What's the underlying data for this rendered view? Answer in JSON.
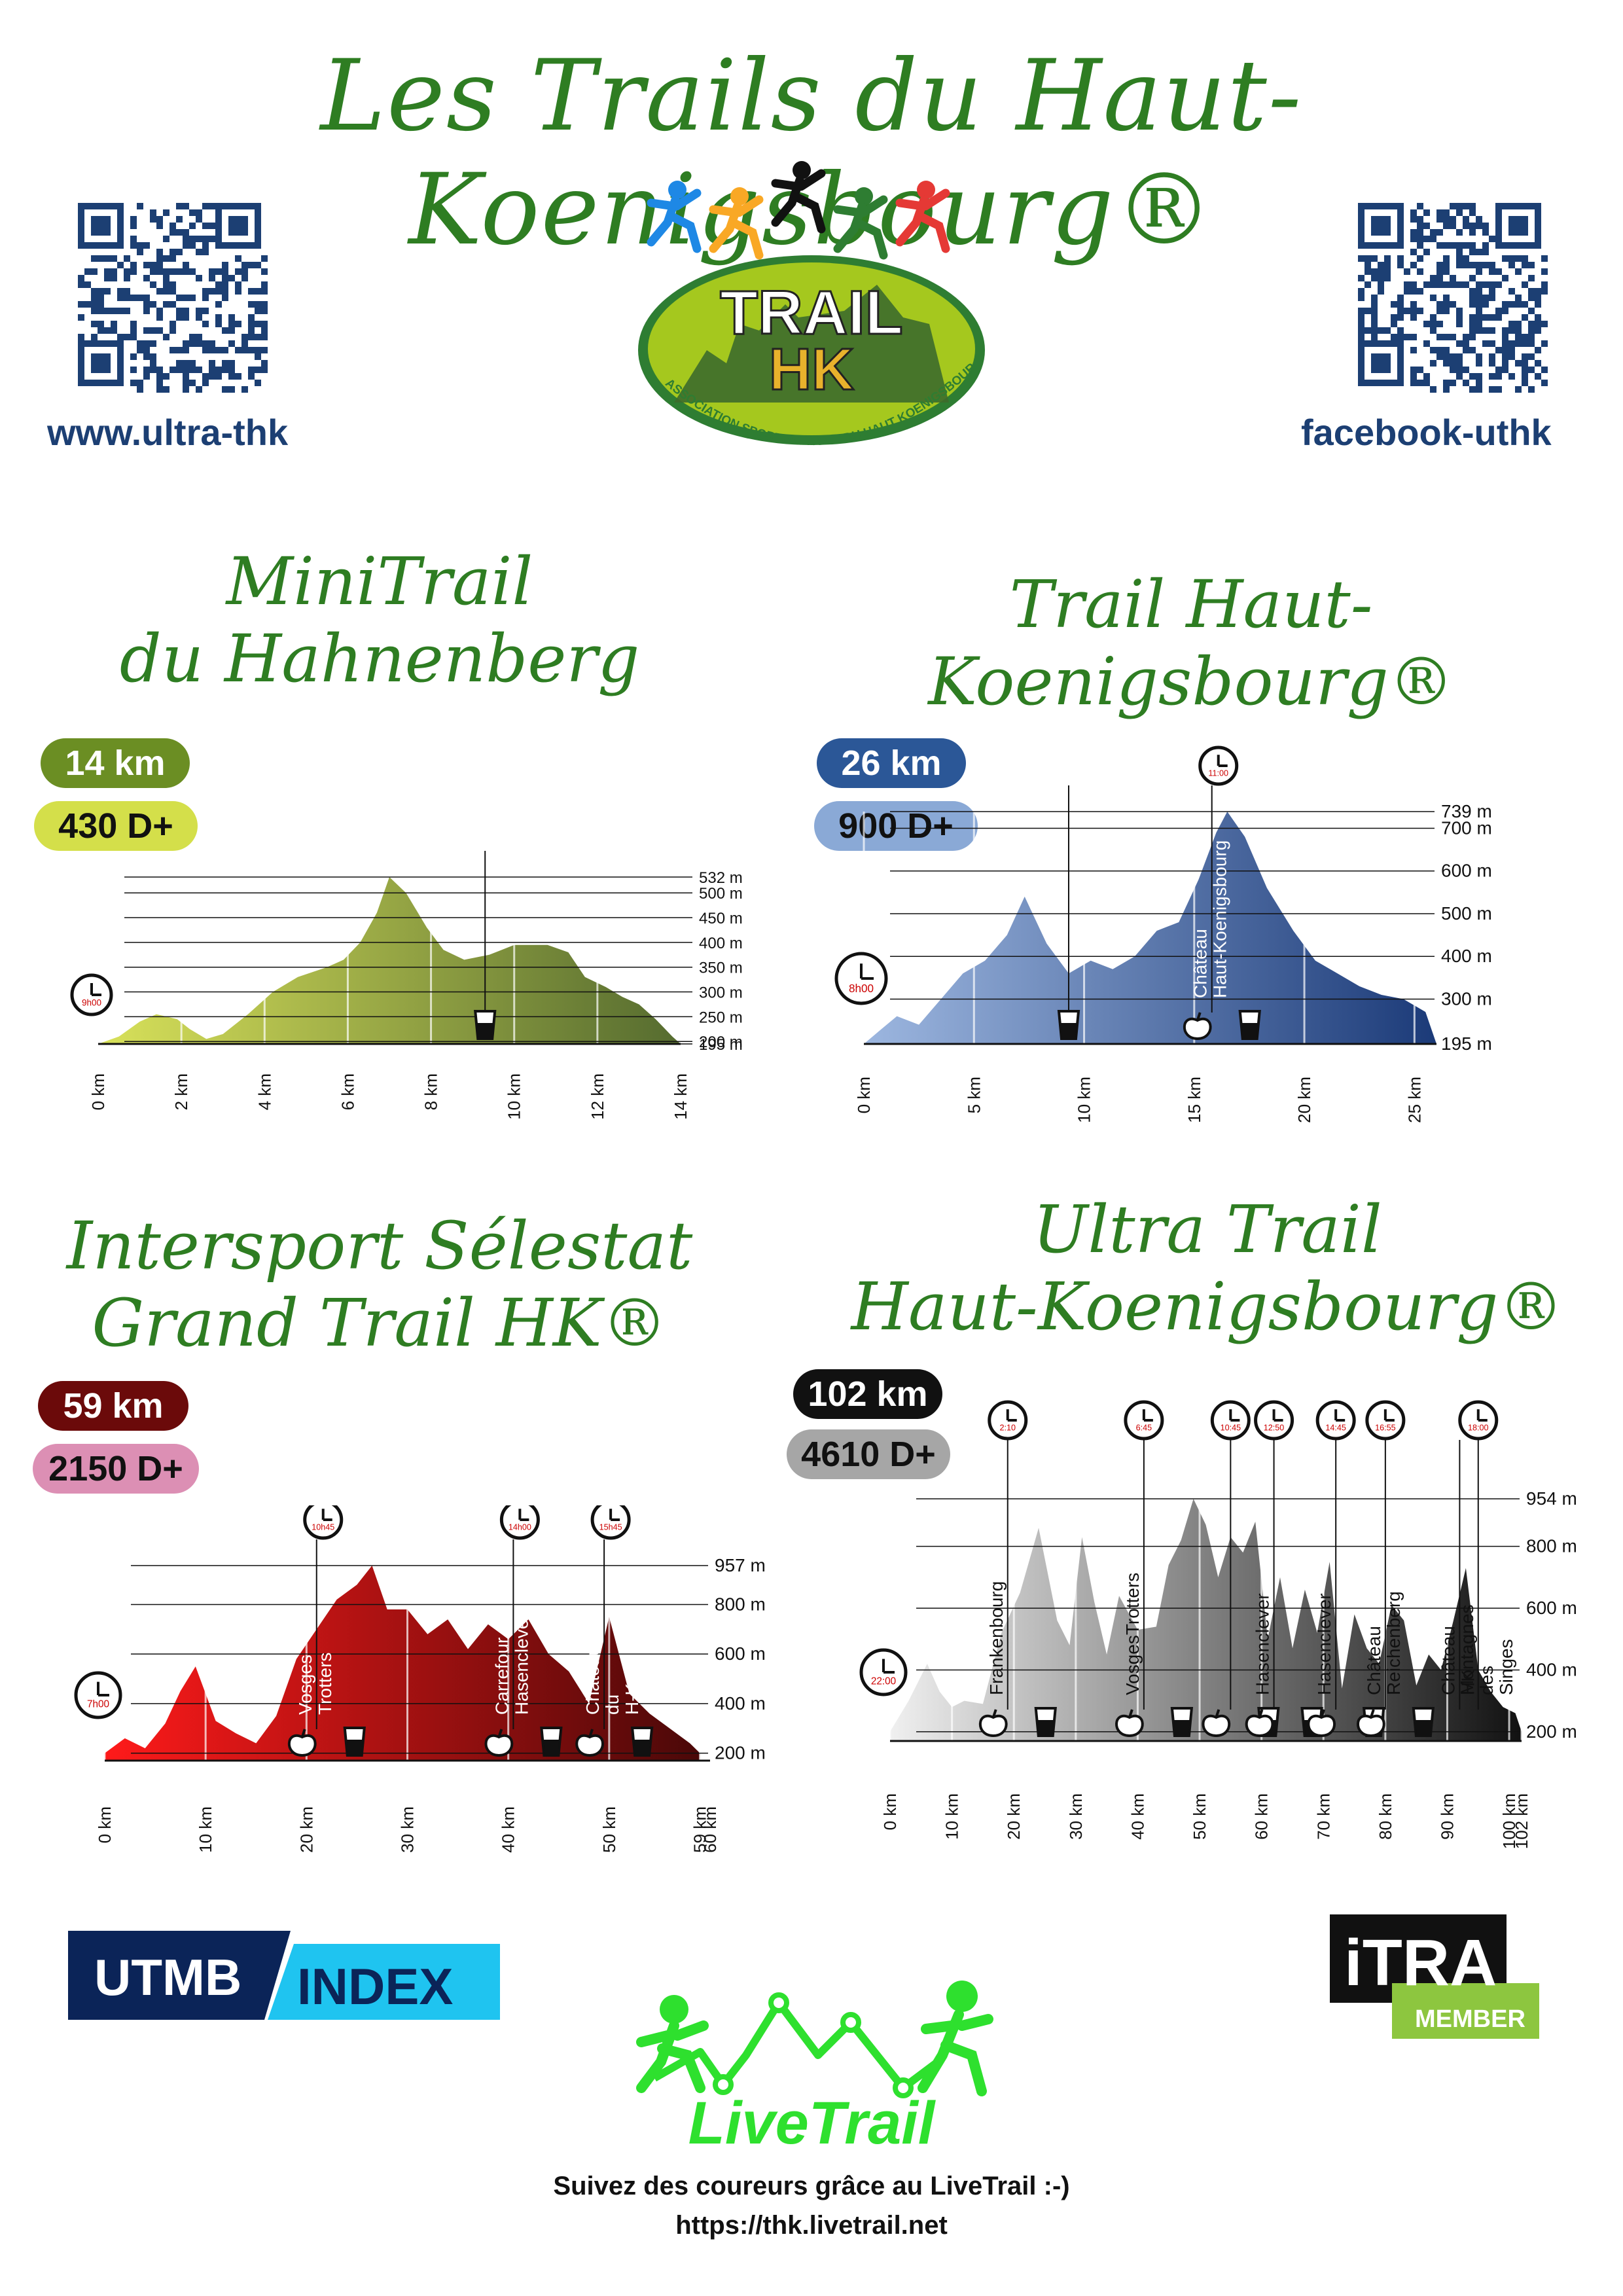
{
  "title": "Les Trails du Haut-Koenigsbourg®",
  "links": {
    "left": "www.ultra-thk",
    "right": "facebook-uthk"
  },
  "logo": {
    "line1": "TRAIL",
    "line2": "HK",
    "ring": "ASSOCIATION SPORTIVE TRAIL DU HAUT KOENIGSBOURG",
    "colors": [
      "#1e88e5",
      "#f9a825",
      "#111111",
      "#2e7d32",
      "#e53935"
    ]
  },
  "races": [
    {
      "title_lines": [
        "MiniTrail",
        "du Hahnenberg"
      ],
      "distance": "14 km",
      "elevation": "430 D+",
      "distance_color": "#6b8e23",
      "elevation_color": "#d4df4a",
      "chart_data": {
        "type": "area",
        "xlabel": "",
        "ylabel": "",
        "x_ticks": [
          "0 km",
          "2 km",
          "4 km",
          "6 km",
          "8 km",
          "10 km",
          "12 km",
          "14 km"
        ],
        "y_ticks": [
          "532 m",
          "500 m",
          "450 m",
          "400 m",
          "350 m",
          "300 m",
          "250 m",
          "200 m",
          "195 m"
        ],
        "x": [
          0,
          0.5,
          1,
          1.4,
          1.9,
          2.2,
          2.6,
          3,
          3.6,
          4.2,
          4.8,
          5.5,
          5.9,
          6.3,
          6.7,
          7,
          7.4,
          7.9,
          8.3,
          8.8,
          9.4,
          10,
          10.8,
          11.3,
          11.7,
          12.2,
          12.6,
          13,
          13.4,
          13.8,
          14
        ],
        "y": [
          195,
          210,
          240,
          255,
          245,
          225,
          205,
          215,
          255,
          300,
          330,
          350,
          365,
          400,
          460,
          532,
          500,
          430,
          385,
          365,
          375,
          395,
          395,
          380,
          330,
          310,
          290,
          275,
          245,
          210,
          195
        ],
        "xlim": [
          0,
          14
        ],
        "ylim": [
          195,
          532
        ],
        "start_time": "9h00",
        "markers": [
          {
            "x": 9.3,
            "icons": [
              "water"
            ]
          }
        ]
      }
    },
    {
      "title_lines": [
        "Trail Haut-Koenigsbourg®"
      ],
      "distance": "26 km",
      "elevation": "900 D+",
      "distance_color": "#2b5797",
      "elevation_color": "#8aa9d6",
      "chart_data": {
        "type": "area",
        "xlabel": "",
        "ylabel": "",
        "x_ticks": [
          "0 km",
          "5 km",
          "10 km",
          "15 km",
          "20 km",
          "25 km"
        ],
        "y_ticks": [
          "739 m",
          "700 m",
          "600 m",
          "500 m",
          "400 m",
          "300 m",
          "195 m"
        ],
        "x": [
          0,
          0.8,
          1.5,
          2.5,
          3.5,
          4.5,
          5.5,
          6.5,
          7.3,
          8.3,
          9.3,
          10.3,
          11.3,
          12.3,
          13.3,
          14.3,
          15.2,
          16,
          16.5,
          17.3,
          18.3,
          19.5,
          20.5,
          21.5,
          22.5,
          23.5,
          24.5,
          25.5,
          26
        ],
        "y": [
          195,
          230,
          260,
          240,
          300,
          360,
          390,
          450,
          540,
          430,
          360,
          390,
          370,
          400,
          460,
          480,
          580,
          690,
          739,
          680,
          560,
          460,
          390,
          360,
          330,
          310,
          300,
          270,
          195
        ],
        "xlim": [
          0,
          26
        ],
        "ylim": [
          195,
          739
        ],
        "start_time": "8h00",
        "cutoff": "11:00",
        "markers": [
          {
            "x": 9.3,
            "icons": [
              "water"
            ]
          },
          {
            "x": 15.8,
            "label": "Château Haut-Koenigsbourg",
            "icons": [
              "food",
              "water"
            ],
            "time": "11:00"
          }
        ]
      }
    },
    {
      "title_lines": [
        "Intersport Sélestat",
        "Grand Trail HK®"
      ],
      "distance": "59 km",
      "elevation": "2150 D+",
      "distance_color": "#6b0a0a",
      "elevation_color": "#dc8fb4",
      "chart_data": {
        "type": "area",
        "xlabel": "",
        "ylabel": "",
        "x_ticks": [
          "0 km",
          "10 km",
          "20 km",
          "30 km",
          "40 km",
          "50 km",
          "59 km",
          "60 km"
        ],
        "y_ticks": [
          "957 m",
          "800 m",
          "600 m",
          "400 m",
          "200 m"
        ],
        "x": [
          0,
          2,
          4,
          6,
          7.5,
          9,
          11,
          13,
          15,
          17,
          19,
          21,
          23,
          25,
          26.5,
          28,
          30,
          32,
          34,
          36,
          38,
          40,
          42,
          44,
          46,
          48,
          50,
          52,
          54,
          56,
          58,
          59
        ],
        "y": [
          200,
          260,
          220,
          320,
          450,
          550,
          330,
          280,
          240,
          350,
          580,
          700,
          820,
          880,
          957,
          780,
          780,
          680,
          740,
          620,
          720,
          660,
          740,
          600,
          530,
          400,
          750,
          440,
          360,
          300,
          240,
          200
        ],
        "xlim": [
          0,
          60
        ],
        "ylim": [
          170,
          957
        ],
        "start_time": "7h00",
        "markers": [
          {
            "x": 21,
            "label": "Vosges Trotters",
            "icons": [
              "food",
              "water"
            ],
            "time": "10h45"
          },
          {
            "x": 40.5,
            "label": "Carrefour Hasenclever",
            "icons": [
              "food",
              "water"
            ],
            "time": "14h00"
          },
          {
            "x": 49.5,
            "label": "Château du H-K",
            "icons": [
              "food",
              "water"
            ],
            "time": "15h45"
          }
        ]
      }
    },
    {
      "title_lines": [
        "Ultra Trail",
        "Haut-Koenigsbourg®"
      ],
      "distance": "102 km",
      "elevation": "4610 D+",
      "distance_color": "#111111",
      "elevation_color": "#a6a6a6",
      "chart_data": {
        "type": "area",
        "xlabel": "",
        "ylabel": "",
        "x_ticks": [
          "0 km",
          "10 km",
          "20 km",
          "30 km",
          "40 km",
          "50 km",
          "60 km",
          "70 km",
          "80 km",
          "90 km",
          "100 km",
          "102 km"
        ],
        "y_ticks": [
          "954 m",
          "800 m",
          "600 m",
          "400 m",
          "200 m"
        ],
        "x": [
          0,
          3,
          6,
          8,
          10,
          12,
          15,
          18,
          21,
          24,
          27,
          29,
          31,
          33,
          35,
          37,
          40,
          43,
          45,
          47,
          49,
          51,
          53,
          55,
          57,
          59,
          61,
          63,
          65,
          67,
          69,
          71,
          73,
          75,
          77,
          79,
          81,
          83,
          85,
          87,
          89,
          91,
          93,
          95,
          97,
          99,
          101,
          102
        ],
        "y": [
          200,
          300,
          420,
          330,
          280,
          300,
          290,
          520,
          650,
          860,
          560,
          480,
          830,
          620,
          450,
          640,
          530,
          540,
          740,
          820,
          954,
          870,
          700,
          830,
          780,
          880,
          500,
          700,
          470,
          660,
          520,
          750,
          340,
          580,
          470,
          420,
          610,
          560,
          350,
          450,
          400,
          560,
          730,
          400,
          330,
          280,
          260,
          200
        ],
        "xlim": [
          0,
          102
        ],
        "ylim": [
          170,
          954
        ],
        "start_time": "22:00",
        "markers": [
          {
            "x": 19,
            "label": "Frankenbourg",
            "icons": [
              "food",
              "water"
            ],
            "time": "2:10"
          },
          {
            "x": 41,
            "label": "VosgesTrotters",
            "icons": [
              "food",
              "water"
            ],
            "time": "6:45"
          },
          {
            "x": 55,
            "label": "",
            "icons": [
              "food",
              "water"
            ],
            "time": "10:45"
          },
          {
            "x": 62,
            "label": "Hasenclever",
            "icons": [
              "food",
              "water"
            ],
            "time": "12:50"
          },
          {
            "x": 72,
            "label": "Hasenclever",
            "icons": [
              "food",
              "water"
            ],
            "time": "14:45"
          },
          {
            "x": 80,
            "label": "Château Reichenberg",
            "icons": [
              "food",
              "water"
            ],
            "time": "16:55"
          },
          {
            "x": 92,
            "label": "Château HK",
            "icons": [],
            "time": ""
          },
          {
            "x": 95,
            "label": "Montagnes des Singes",
            "icons": [],
            "time": "18:00"
          }
        ]
      }
    }
  ],
  "sponsors": {
    "utmb_left": "UTMB",
    "utmb_right": "INDEX",
    "itra_top": "iTRA",
    "itra_bottom": "MEMBER",
    "livetrail": "LiveTrail"
  },
  "footer": {
    "line1": "Suivez des coureurs grâce au LiveTrail :-)",
    "line2": "https://thk.livetrail.net"
  }
}
